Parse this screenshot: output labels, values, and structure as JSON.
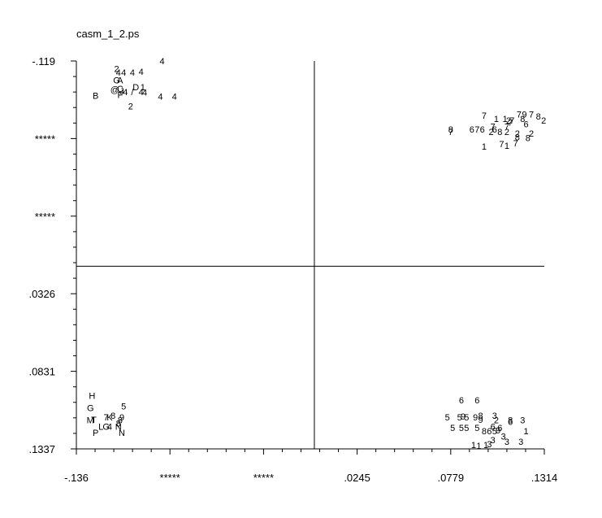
{
  "title": "casm_1_2.ps",
  "chart_data": {
    "type": "scatter",
    "title": "casm_1_2.ps",
    "xlabel": "",
    "ylabel": "",
    "xlim": [
      -0.136,
      0.1314
    ],
    "ylim": [
      -0.119,
      0.1337
    ],
    "grid": false,
    "legend": "none",
    "x_ticks": [
      "-.136",
      "*****",
      "*****",
      ".0245",
      ".0779",
      ".1314"
    ],
    "y_ticks": [
      ".1337",
      ".0831",
      ".0326",
      "*****",
      "*****",
      "-.119"
    ],
    "ref_lines": {
      "x": 0.0,
      "y": 0.0
    },
    "points": [
      {
        "x": -0.087,
        "y": 0.1337,
        "label": "4"
      },
      {
        "x": -0.113,
        "y": 0.1287,
        "label": "2"
      },
      {
        "x": -0.112,
        "y": 0.1262,
        "label": "4"
      },
      {
        "x": -0.109,
        "y": 0.1262,
        "label": "4"
      },
      {
        "x": -0.104,
        "y": 0.1262,
        "label": "4"
      },
      {
        "x": -0.099,
        "y": 0.1267,
        "label": "4"
      },
      {
        "x": -0.113,
        "y": 0.1212,
        "label": "G"
      },
      {
        "x": -0.111,
        "y": 0.1212,
        "label": "A"
      },
      {
        "x": -0.114,
        "y": 0.1152,
        "label": "@"
      },
      {
        "x": -0.111,
        "y": 0.1157,
        "label": "C"
      },
      {
        "x": -0.11,
        "y": 0.1142,
        "label": "J"
      },
      {
        "x": -0.102,
        "y": 0.1167,
        "label": "D"
      },
      {
        "x": -0.098,
        "y": 0.1167,
        "label": "1"
      },
      {
        "x": -0.099,
        "y": 0.1137,
        "label": "4"
      },
      {
        "x": -0.104,
        "y": 0.1137,
        "label": "/"
      },
      {
        "x": -0.108,
        "y": 0.1137,
        "label": "4"
      },
      {
        "x": -0.097,
        "y": 0.1132,
        "label": "4"
      },
      {
        "x": -0.111,
        "y": 0.1117,
        "label": "F"
      },
      {
        "x": -0.125,
        "y": 0.1112,
        "label": "B"
      },
      {
        "x": -0.088,
        "y": 0.1107,
        "label": "4"
      },
      {
        "x": -0.08,
        "y": 0.1107,
        "label": "4"
      },
      {
        "x": -0.105,
        "y": 0.1042,
        "label": "2"
      },
      {
        "x": 0.0779,
        "y": 0.0891,
        "label": "8"
      },
      {
        "x": 0.0779,
        "y": 0.0876,
        "label": "7"
      },
      {
        "x": 0.097,
        "y": 0.0981,
        "label": "7"
      },
      {
        "x": 0.104,
        "y": 0.0961,
        "label": "1"
      },
      {
        "x": 0.109,
        "y": 0.0961,
        "label": "1"
      },
      {
        "x": 0.111,
        "y": 0.0951,
        "label": "2"
      },
      {
        "x": 0.113,
        "y": 0.0951,
        "label": "7"
      },
      {
        "x": 0.117,
        "y": 0.0991,
        "label": "7"
      },
      {
        "x": 0.12,
        "y": 0.0991,
        "label": "9"
      },
      {
        "x": 0.124,
        "y": 0.0991,
        "label": "7"
      },
      {
        "x": 0.119,
        "y": 0.0961,
        "label": "8"
      },
      {
        "x": 0.128,
        "y": 0.0976,
        "label": "8"
      },
      {
        "x": 0.131,
        "y": 0.0951,
        "label": "2"
      },
      {
        "x": 0.112,
        "y": 0.0936,
        "label": "7"
      },
      {
        "x": 0.121,
        "y": 0.0926,
        "label": "6"
      },
      {
        "x": 0.102,
        "y": 0.0911,
        "label": "7"
      },
      {
        "x": 0.11,
        "y": 0.0911,
        "label": "7"
      },
      {
        "x": 0.09,
        "y": 0.0891,
        "label": "6"
      },
      {
        "x": 0.093,
        "y": 0.0891,
        "label": "7"
      },
      {
        "x": 0.096,
        "y": 0.0891,
        "label": "6"
      },
      {
        "x": 0.103,
        "y": 0.0891,
        "label": "6"
      },
      {
        "x": 0.101,
        "y": 0.0876,
        "label": "2"
      },
      {
        "x": 0.106,
        "y": 0.0876,
        "label": "8"
      },
      {
        "x": 0.11,
        "y": 0.0876,
        "label": "2"
      },
      {
        "x": 0.116,
        "y": 0.0866,
        "label": "2"
      },
      {
        "x": 0.124,
        "y": 0.0866,
        "label": "2"
      },
      {
        "x": 0.116,
        "y": 0.0841,
        "label": "8"
      },
      {
        "x": 0.122,
        "y": 0.0836,
        "label": "8"
      },
      {
        "x": 0.107,
        "y": 0.0796,
        "label": "7"
      },
      {
        "x": 0.11,
        "y": 0.0786,
        "label": "1"
      },
      {
        "x": 0.115,
        "y": 0.0801,
        "label": "7"
      },
      {
        "x": 0.097,
        "y": 0.0781,
        "label": "1"
      },
      {
        "x": -0.127,
        "y": -0.0843,
        "label": "H"
      },
      {
        "x": -0.128,
        "y": -0.0923,
        "label": "G"
      },
      {
        "x": -0.109,
        "y": -0.0913,
        "label": "5"
      },
      {
        "x": -0.128,
        "y": -0.1003,
        "label": "M"
      },
      {
        "x": -0.126,
        "y": -0.0998,
        "label": "T"
      },
      {
        "x": -0.119,
        "y": -0.0983,
        "label": "7"
      },
      {
        "x": -0.117,
        "y": -0.0983,
        "label": "K"
      },
      {
        "x": -0.115,
        "y": -0.0973,
        "label": "8"
      },
      {
        "x": -0.11,
        "y": -0.0983,
        "label": "9"
      },
      {
        "x": -0.111,
        "y": -0.1003,
        "label": "8"
      },
      {
        "x": -0.122,
        "y": -0.1043,
        "label": "L"
      },
      {
        "x": -0.119,
        "y": -0.1043,
        "label": "G"
      },
      {
        "x": -0.117,
        "y": -0.1043,
        "label": "4"
      },
      {
        "x": -0.112,
        "y": -0.1043,
        "label": "N"
      },
      {
        "x": -0.112,
        "y": -0.1023,
        "label": "8"
      },
      {
        "x": -0.125,
        "y": -0.1083,
        "label": "P"
      },
      {
        "x": -0.11,
        "y": -0.1083,
        "label": "N"
      },
      {
        "x": 0.084,
        "y": -0.0873,
        "label": "6"
      },
      {
        "x": 0.093,
        "y": -0.0873,
        "label": "6"
      },
      {
        "x": 0.076,
        "y": -0.0983,
        "label": "5"
      },
      {
        "x": 0.083,
        "y": -0.0983,
        "label": "5"
      },
      {
        "x": 0.085,
        "y": -0.0978,
        "label": "9"
      },
      {
        "x": 0.087,
        "y": -0.0983,
        "label": "5"
      },
      {
        "x": 0.092,
        "y": -0.0983,
        "label": "9"
      },
      {
        "x": 0.095,
        "y": -0.0973,
        "label": "8"
      },
      {
        "x": 0.095,
        "y": -0.0998,
        "label": "9"
      },
      {
        "x": 0.103,
        "y": -0.0973,
        "label": "3"
      },
      {
        "x": 0.104,
        "y": -0.1003,
        "label": "2"
      },
      {
        "x": 0.112,
        "y": -0.1003,
        "label": "8"
      },
      {
        "x": 0.119,
        "y": -0.1003,
        "label": "3"
      },
      {
        "x": 0.112,
        "y": -0.1013,
        "label": "6"
      },
      {
        "x": 0.079,
        "y": -0.1053,
        "label": "5"
      },
      {
        "x": 0.084,
        "y": -0.1053,
        "label": "5"
      },
      {
        "x": 0.087,
        "y": -0.1053,
        "label": "5"
      },
      {
        "x": 0.093,
        "y": -0.1053,
        "label": "5"
      },
      {
        "x": 0.102,
        "y": -0.1043,
        "label": "6"
      },
      {
        "x": 0.106,
        "y": -0.1053,
        "label": "6"
      },
      {
        "x": 0.097,
        "y": -0.1073,
        "label": "8"
      },
      {
        "x": 0.1,
        "y": -0.1073,
        "label": "6"
      },
      {
        "x": 0.103,
        "y": -0.1073,
        "label": "5"
      },
      {
        "x": 0.105,
        "y": -0.1068,
        "label": "9"
      },
      {
        "x": 0.121,
        "y": -0.1073,
        "label": "1"
      },
      {
        "x": 0.108,
        "y": -0.1108,
        "label": "3"
      },
      {
        "x": 0.102,
        "y": -0.1133,
        "label": "3"
      },
      {
        "x": 0.11,
        "y": -0.1143,
        "label": "3"
      },
      {
        "x": 0.118,
        "y": -0.1143,
        "label": "3"
      },
      {
        "x": 0.091,
        "y": -0.1163,
        "label": "1"
      },
      {
        "x": 0.094,
        "y": -0.1168,
        "label": "1"
      },
      {
        "x": 0.098,
        "y": -0.1163,
        "label": "1"
      },
      {
        "x": 0.1,
        "y": -0.1158,
        "label": "3"
      }
    ]
  }
}
